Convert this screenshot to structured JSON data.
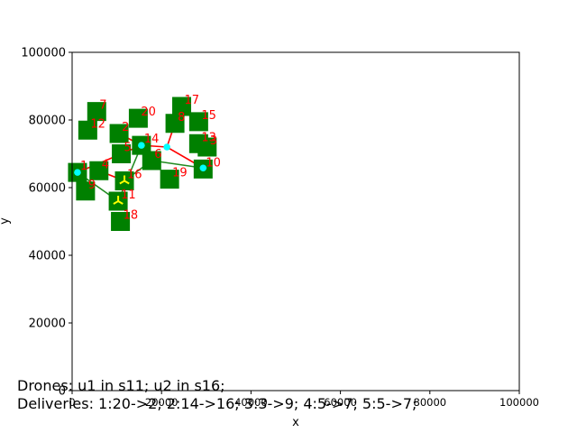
{
  "chart_data": {
    "type": "scatter",
    "title": "",
    "xlabel": "x",
    "ylabel": "y",
    "xlim": [
      0,
      100000
    ],
    "ylim": [
      0,
      100000
    ],
    "xticks": [
      "0",
      "20000",
      "40000",
      "60000",
      "80000",
      "100000"
    ],
    "yticks": [
      "0",
      "20000",
      "40000",
      "60000",
      "80000",
      "100000"
    ],
    "grid": false,
    "colors": {
      "site": "#008000",
      "label": "#ff0000",
      "depot": "#00ffff",
      "drone": "#ffff00",
      "route_red": "#ff0000",
      "route_green": "#228b22"
    },
    "sites": [
      {
        "label": "1",
        "x": 1200,
        "y": 64500
      },
      {
        "label": "2",
        "x": 10500,
        "y": 76000
      },
      {
        "label": "3",
        "x": 30200,
        "y": 72000
      },
      {
        "label": "4",
        "x": 6000,
        "y": 65000
      },
      {
        "label": "5",
        "x": 11000,
        "y": 70000
      },
      {
        "label": "6",
        "x": 17800,
        "y": 68000
      },
      {
        "label": "7",
        "x": 5500,
        "y": 82500
      },
      {
        "label": "8",
        "x": 23000,
        "y": 79000
      },
      {
        "label": "9",
        "x": 3000,
        "y": 59000
      },
      {
        "label": "10",
        "x": 29300,
        "y": 65500
      },
      {
        "label": "11",
        "x": 10300,
        "y": 56000
      },
      {
        "label": "12",
        "x": 3500,
        "y": 77000
      },
      {
        "label": "13",
        "x": 28300,
        "y": 73000
      },
      {
        "label": "14",
        "x": 15500,
        "y": 72500
      },
      {
        "label": "15",
        "x": 28300,
        "y": 79500
      },
      {
        "label": "16",
        "x": 11700,
        "y": 62000
      },
      {
        "label": "17",
        "x": 24500,
        "y": 84000
      },
      {
        "label": "18",
        "x": 10800,
        "y": 50000
      },
      {
        "label": "19",
        "x": 21800,
        "y": 62500
      },
      {
        "label": "20",
        "x": 14800,
        "y": 80500
      }
    ],
    "depots": [
      {
        "x": 1200,
        "y": 64500
      },
      {
        "x": 15500,
        "y": 72500
      },
      {
        "x": 21200,
        "y": 72000
      },
      {
        "x": 29300,
        "y": 65800
      }
    ],
    "drones": [
      {
        "name": "u1",
        "site": "11",
        "x": 10300,
        "y": 56000
      },
      {
        "name": "u2",
        "site": "16",
        "x": 11700,
        "y": 62000
      }
    ],
    "routes_red": [
      {
        "points": [
          [
            1200,
            64500
          ],
          [
            15500,
            72500
          ]
        ]
      },
      {
        "points": [
          [
            15500,
            72500
          ],
          [
            21200,
            72000
          ],
          [
            29300,
            65800
          ]
        ]
      },
      {
        "points": [
          [
            21200,
            72000
          ],
          [
            23000,
            79000
          ]
        ]
      },
      {
        "points": [
          [
            10500,
            76000
          ],
          [
            15500,
            72500
          ]
        ]
      },
      {
        "points": [
          [
            6000,
            65000
          ],
          [
            11700,
            62000
          ]
        ]
      }
    ],
    "routes_green": [
      {
        "points": [
          [
            1200,
            64500
          ],
          [
            10300,
            56000
          ]
        ]
      },
      {
        "points": [
          [
            11700,
            62000
          ],
          [
            17800,
            68000
          ]
        ]
      },
      {
        "points": [
          [
            17800,
            68000
          ],
          [
            15500,
            72500
          ]
        ]
      },
      {
        "points": [
          [
            17800,
            68000
          ],
          [
            29300,
            65800
          ]
        ]
      },
      {
        "points": [
          [
            10300,
            56000
          ],
          [
            15500,
            72500
          ]
        ]
      }
    ]
  },
  "status": {
    "drones_line": "Drones: u1 in s11; u2 in s16;",
    "deliveries_line": "Deliveries: 1:20->2; 2:14->16; 3:3->9; 4:5->7; 5:5->7;"
  }
}
